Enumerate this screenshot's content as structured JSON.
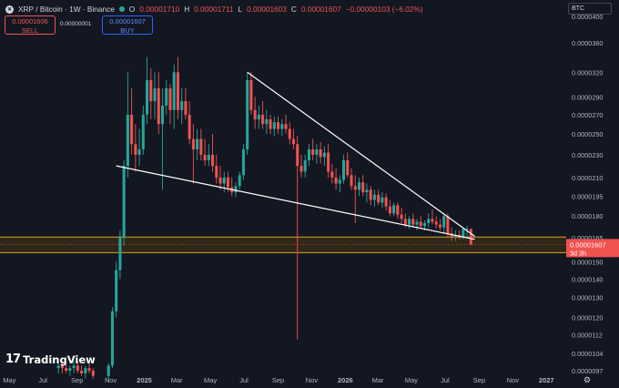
{
  "header": {
    "symbol": "XRP / Bitcoin · 1W · Binance",
    "open_label": "O",
    "open_value": "0.00001710",
    "high_label": "H",
    "high_value": "0.00001711",
    "low_label": "L",
    "low_value": "0.00001603",
    "close_label": "C",
    "close_value": "0.00001607",
    "change": "−0.00000103 (−6.02%)"
  },
  "trade": {
    "sell_price": "0.00001606",
    "sell_label": "SELL",
    "spread": "0.00000001",
    "buy_price": "0.00001607",
    "buy_label": "BUY"
  },
  "toolbar": {
    "currency": "BTC"
  },
  "branding": {
    "logo_mark": "17",
    "logo_text": "TradingView"
  },
  "colors": {
    "background": "#131722",
    "up": "#26a69a",
    "down": "#ef5350",
    "trendline": "#ffffff",
    "zone_border": "#e0a020",
    "zone_fill": "#3a2e14",
    "price_label_bg": "#ef5350"
  },
  "chart_data": {
    "type": "candlestick",
    "ylim": [
      9.7e-06,
      4e-05
    ],
    "log_scale": true,
    "y_ticks": [
      "0.0000400",
      "0.0000360",
      "0.0000320",
      "0.0000290",
      "0.0000270",
      "0.0000250",
      "0.0000230",
      "0.0000210",
      "0.0000195",
      "0.0000180",
      "0.0000165",
      "0.0000150",
      "0.0000140",
      "0.0000130",
      "0.0000120",
      "0.0000112",
      "0.0000104",
      "0.0000097"
    ],
    "y_tick_values": [
      4e-05,
      3.6e-05,
      3.2e-05,
      2.9e-05,
      2.7e-05,
      2.5e-05,
      2.3e-05,
      2.1e-05,
      1.95e-05,
      1.8e-05,
      1.65e-05,
      1.5e-05,
      1.4e-05,
      1.3e-05,
      1.2e-05,
      1.12e-05,
      1.04e-05,
      9.7e-06
    ],
    "x_ticks": [
      "May",
      "Jul",
      "Sep",
      "Nov",
      "2025",
      "Mar",
      "May",
      "Jul",
      "Sep",
      "Nov",
      "2026",
      "Mar",
      "May",
      "Jul",
      "Sep",
      "Nov",
      "2027"
    ],
    "x_tick_dates": [
      "2024-05-01",
      "2024-07-01",
      "2024-09-01",
      "2024-11-01",
      "2025-01-01",
      "2025-03-01",
      "2025-05-01",
      "2025-07-01",
      "2025-09-01",
      "2025-11-01",
      "2026-01-01",
      "2026-03-01",
      "2026-05-01",
      "2026-07-01",
      "2026-09-01",
      "2026-11-01",
      "2027-01-01"
    ],
    "x_range": [
      "2024-04-14",
      "2027-02-06"
    ],
    "last_price": "0.00001607",
    "last_price_value": 1.607e-05,
    "countdown": "3d 3h",
    "support_zone": [
      1.555e-05,
      1.655e-05
    ],
    "trendlines": [
      {
        "name": "upper",
        "from": {
          "date": "2025-07-07",
          "value": 3.2e-05
        },
        "to": {
          "date": "2026-08-24",
          "value": 1.66e-05
        }
      },
      {
        "name": "lower",
        "from": {
          "date": "2024-11-11",
          "value": 2.2e-05
        },
        "to": {
          "date": "2026-08-24",
          "value": 1.64e-05
        }
      }
    ],
    "candles": [
      {
        "date": "2024-07-29",
        "o": 9.8e-06,
        "h": 1e-05,
        "l": 9.6e-06,
        "c": 9.9e-06
      },
      {
        "date": "2024-08-05",
        "o": 9.9e-06,
        "h": 1.01e-05,
        "l": 9.6e-06,
        "c": 9.8e-06
      },
      {
        "date": "2024-08-12",
        "o": 9.8e-06,
        "h": 1e-05,
        "l": 9.6e-06,
        "c": 9.7e-06
      },
      {
        "date": "2024-08-19",
        "o": 9.7e-06,
        "h": 9.9e-06,
        "l": 9.5e-06,
        "c": 9.8e-06
      },
      {
        "date": "2024-08-26",
        "o": 9.8e-06,
        "h": 1.01e-05,
        "l": 9.6e-06,
        "c": 9.9e-06
      },
      {
        "date": "2024-09-02",
        "o": 9.9e-06,
        "h": 1.01e-05,
        "l": 9.6e-06,
        "c": 9.7e-06
      },
      {
        "date": "2024-09-09",
        "o": 9.7e-06,
        "h": 9.9e-06,
        "l": 9.5e-06,
        "c": 9.6e-06
      },
      {
        "date": "2024-09-16",
        "o": 9.6e-06,
        "h": 9.9e-06,
        "l": 9.4e-06,
        "c": 9.8e-06
      },
      {
        "date": "2024-09-23",
        "o": 9.8e-06,
        "h": 1e-05,
        "l": 9.6e-06,
        "c": 9.7e-06
      },
      {
        "date": "2024-09-30",
        "o": 9.7e-06,
        "h": 9.8e-06,
        "l": 9.4e-06,
        "c": 9.5e-06
      },
      {
        "date": "2024-10-28",
        "o": 9.5e-06,
        "h": 1e-05,
        "l": 9.3e-06,
        "c": 9.9e-06
      },
      {
        "date": "2024-11-04",
        "o": 9.9e-06,
        "h": 1.25e-05,
        "l": 9.8e-06,
        "c": 1.23e-05
      },
      {
        "date": "2024-11-11",
        "o": 1.23e-05,
        "h": 1.5e-05,
        "l": 1.2e-05,
        "c": 1.45e-05
      },
      {
        "date": "2024-11-18",
        "o": 1.45e-05,
        "h": 1.7e-05,
        "l": 1.4e-05,
        "c": 1.65e-05
      },
      {
        "date": "2024-11-25",
        "o": 1.65e-05,
        "h": 2.25e-05,
        "l": 1.6e-05,
        "c": 2.2e-05
      },
      {
        "date": "2024-12-02",
        "o": 2.2e-05,
        "h": 3.2e-05,
        "l": 2.1e-05,
        "c": 2.7e-05
      },
      {
        "date": "2024-12-09",
        "o": 2.7e-05,
        "h": 3e-05,
        "l": 2.3e-05,
        "c": 2.4e-05
      },
      {
        "date": "2024-12-16",
        "o": 2.4e-05,
        "h": 2.6e-05,
        "l": 2.15e-05,
        "c": 2.3e-05
      },
      {
        "date": "2024-12-23",
        "o": 2.3e-05,
        "h": 2.55e-05,
        "l": 2.2e-05,
        "c": 2.35e-05
      },
      {
        "date": "2024-12-30",
        "o": 2.35e-05,
        "h": 2.8e-05,
        "l": 2.3e-05,
        "c": 2.7e-05
      },
      {
        "date": "2025-01-06",
        "o": 2.7e-05,
        "h": 3.4e-05,
        "l": 2.6e-05,
        "c": 3.1e-05
      },
      {
        "date": "2025-01-13",
        "o": 3.1e-05,
        "h": 3.25e-05,
        "l": 2.65e-05,
        "c": 2.85e-05
      },
      {
        "date": "2025-01-20",
        "o": 2.85e-05,
        "h": 3.2e-05,
        "l": 2.65e-05,
        "c": 3e-05
      },
      {
        "date": "2025-01-27",
        "o": 3e-05,
        "h": 3.2e-05,
        "l": 2.5e-05,
        "c": 2.6e-05
      },
      {
        "date": "2025-02-03",
        "o": 2.6e-05,
        "h": 3e-05,
        "l": 2e-05,
        "c": 2.8e-05
      },
      {
        "date": "2025-02-10",
        "o": 2.8e-05,
        "h": 3.1e-05,
        "l": 2.7e-05,
        "c": 3e-05
      },
      {
        "date": "2025-02-17",
        "o": 3e-05,
        "h": 3.05e-05,
        "l": 2.6e-05,
        "c": 2.75e-05
      },
      {
        "date": "2025-02-24",
        "o": 2.75e-05,
        "h": 3.3e-05,
        "l": 2.55e-05,
        "c": 3.2e-05
      },
      {
        "date": "2025-03-03",
        "o": 3.2e-05,
        "h": 3.4e-05,
        "l": 2.65e-05,
        "c": 2.75e-05
      },
      {
        "date": "2025-03-10",
        "o": 2.75e-05,
        "h": 3e-05,
        "l": 2.6e-05,
        "c": 2.85e-05
      },
      {
        "date": "2025-03-17",
        "o": 2.85e-05,
        "h": 3e-05,
        "l": 2.65e-05,
        "c": 2.7e-05
      },
      {
        "date": "2025-03-24",
        "o": 2.7e-05,
        "h": 2.85e-05,
        "l": 2.4e-05,
        "c": 2.45e-05
      },
      {
        "date": "2025-03-31",
        "o": 2.45e-05,
        "h": 2.6e-05,
        "l": 2.05e-05,
        "c": 2.35e-05
      },
      {
        "date": "2025-04-07",
        "o": 2.35e-05,
        "h": 2.55e-05,
        "l": 2.25e-05,
        "c": 2.45e-05
      },
      {
        "date": "2025-04-14",
        "o": 2.45e-05,
        "h": 2.55e-05,
        "l": 2.25e-05,
        "c": 2.3e-05
      },
      {
        "date": "2025-04-21",
        "o": 2.3e-05,
        "h": 2.45e-05,
        "l": 2.2e-05,
        "c": 2.25e-05
      },
      {
        "date": "2025-04-28",
        "o": 2.25e-05,
        "h": 2.4e-05,
        "l": 2.2e-05,
        "c": 2.3e-05
      },
      {
        "date": "2025-05-05",
        "o": 2.3e-05,
        "h": 2.5e-05,
        "l": 2.15e-05,
        "c": 2.2e-05
      },
      {
        "date": "2025-05-12",
        "o": 2.2e-05,
        "h": 2.3e-05,
        "l": 2.05e-05,
        "c": 2.1e-05
      },
      {
        "date": "2025-05-19",
        "o": 2.1e-05,
        "h": 2.2e-05,
        "l": 2e-05,
        "c": 2.05e-05
      },
      {
        "date": "2025-05-26",
        "o": 2.05e-05,
        "h": 2.15e-05,
        "l": 1.98e-05,
        "c": 2.1e-05
      },
      {
        "date": "2025-06-02",
        "o": 2.1e-05,
        "h": 2.15e-05,
        "l": 1.98e-05,
        "c": 2.02e-05
      },
      {
        "date": "2025-06-09",
        "o": 2.02e-05,
        "h": 2.1e-05,
        "l": 1.95e-05,
        "c": 1.98e-05
      },
      {
        "date": "2025-06-16",
        "o": 1.98e-05,
        "h": 2.06e-05,
        "l": 1.94e-05,
        "c": 2.03e-05
      },
      {
        "date": "2025-06-23",
        "o": 2.03e-05,
        "h": 2.15e-05,
        "l": 2e-05,
        "c": 2.12e-05
      },
      {
        "date": "2025-06-30",
        "o": 2.12e-05,
        "h": 2.4e-05,
        "l": 2.08e-05,
        "c": 2.35e-05
      },
      {
        "date": "2025-07-07",
        "o": 2.35e-05,
        "h": 3.2e-05,
        "l": 2.3e-05,
        "c": 3.1e-05
      },
      {
        "date": "2025-07-14",
        "o": 3.1e-05,
        "h": 3.2e-05,
        "l": 2.7e-05,
        "c": 2.75e-05
      },
      {
        "date": "2025-07-21",
        "o": 2.75e-05,
        "h": 2.9e-05,
        "l": 2.55e-05,
        "c": 2.65e-05
      },
      {
        "date": "2025-07-28",
        "o": 2.65e-05,
        "h": 2.8e-05,
        "l": 2.55e-05,
        "c": 2.7e-05
      },
      {
        "date": "2025-08-04",
        "o": 2.7e-05,
        "h": 2.85e-05,
        "l": 2.55e-05,
        "c": 2.6e-05
      },
      {
        "date": "2025-08-11",
        "o": 2.6e-05,
        "h": 2.75e-05,
        "l": 2.5e-05,
        "c": 2.65e-05
      },
      {
        "date": "2025-08-18",
        "o": 2.65e-05,
        "h": 2.7e-05,
        "l": 2.5e-05,
        "c": 2.55e-05
      },
      {
        "date": "2025-08-25",
        "o": 2.55e-05,
        "h": 2.68e-05,
        "l": 2.48e-05,
        "c": 2.62e-05
      },
      {
        "date": "2025-09-01",
        "o": 2.62e-05,
        "h": 2.68e-05,
        "l": 2.5e-05,
        "c": 2.55e-05
      },
      {
        "date": "2025-09-08",
        "o": 2.55e-05,
        "h": 2.65e-05,
        "l": 2.48e-05,
        "c": 2.6e-05
      },
      {
        "date": "2025-09-15",
        "o": 2.6e-05,
        "h": 2.7e-05,
        "l": 2.5e-05,
        "c": 2.55e-05
      },
      {
        "date": "2025-09-22",
        "o": 2.55e-05,
        "h": 2.62e-05,
        "l": 2.4e-05,
        "c": 2.45e-05
      },
      {
        "date": "2025-09-29",
        "o": 2.45e-05,
        "h": 2.55e-05,
        "l": 2.35e-05,
        "c": 2.4e-05
      },
      {
        "date": "2025-10-06",
        "o": 2.4e-05,
        "h": 2.48e-05,
        "l": 1.1e-05,
        "c": 2.2e-05
      },
      {
        "date": "2025-10-13",
        "o": 2.2e-05,
        "h": 2.3e-05,
        "l": 2.1e-05,
        "c": 2.15e-05
      },
      {
        "date": "2025-10-20",
        "o": 2.15e-05,
        "h": 2.3e-05,
        "l": 2.1e-05,
        "c": 2.25e-05
      },
      {
        "date": "2025-10-27",
        "o": 2.25e-05,
        "h": 2.4e-05,
        "l": 2.2e-05,
        "c": 2.35e-05
      },
      {
        "date": "2025-11-03",
        "o": 2.35e-05,
        "h": 2.45e-05,
        "l": 2.25e-05,
        "c": 2.3e-05
      },
      {
        "date": "2025-11-10",
        "o": 2.3e-05,
        "h": 2.4e-05,
        "l": 2.22e-05,
        "c": 2.35e-05
      },
      {
        "date": "2025-11-17",
        "o": 2.35e-05,
        "h": 2.42e-05,
        "l": 2.22e-05,
        "c": 2.28e-05
      },
      {
        "date": "2025-11-24",
        "o": 2.28e-05,
        "h": 2.38e-05,
        "l": 2.2e-05,
        "c": 2.32e-05
      },
      {
        "date": "2025-12-01",
        "o": 2.32e-05,
        "h": 2.4e-05,
        "l": 2.1e-05,
        "c": 2.15e-05
      },
      {
        "date": "2025-12-08",
        "o": 2.15e-05,
        "h": 2.22e-05,
        "l": 2.05e-05,
        "c": 2.1e-05
      },
      {
        "date": "2025-12-15",
        "o": 2.1e-05,
        "h": 2.18e-05,
        "l": 2e-05,
        "c": 2.05e-05
      },
      {
        "date": "2025-12-22",
        "o": 2.05e-05,
        "h": 2.12e-05,
        "l": 1.98e-05,
        "c": 2.08e-05
      },
      {
        "date": "2025-12-29",
        "o": 2.08e-05,
        "h": 2.3e-05,
        "l": 2.05e-05,
        "c": 2.25e-05
      },
      {
        "date": "2026-01-05",
        "o": 2.25e-05,
        "h": 2.32e-05,
        "l": 2.1e-05,
        "c": 2.12e-05
      },
      {
        "date": "2026-01-12",
        "o": 2.12e-05,
        "h": 2.18e-05,
        "l": 2e-05,
        "c": 2.03e-05
      },
      {
        "date": "2026-01-19",
        "o": 2.03e-05,
        "h": 2.12e-05,
        "l": 1.75e-05,
        "c": 2e-05
      },
      {
        "date": "2026-01-26",
        "o": 2e-05,
        "h": 2.1e-05,
        "l": 1.95e-05,
        "c": 2.06e-05
      },
      {
        "date": "2026-02-02",
        "o": 2.06e-05,
        "h": 2.12e-05,
        "l": 1.95e-05,
        "c": 1.98e-05
      },
      {
        "date": "2026-02-09",
        "o": 1.98e-05,
        "h": 2.05e-05,
        "l": 1.9e-05,
        "c": 2e-05
      },
      {
        "date": "2026-02-16",
        "o": 2e-05,
        "h": 2.03e-05,
        "l": 1.88e-05,
        "c": 1.92e-05
      },
      {
        "date": "2026-02-23",
        "o": 1.92e-05,
        "h": 2e-05,
        "l": 1.87e-05,
        "c": 1.96e-05
      },
      {
        "date": "2026-03-02",
        "o": 1.96e-05,
        "h": 2e-05,
        "l": 1.88e-05,
        "c": 1.9e-05
      },
      {
        "date": "2026-03-09",
        "o": 1.9e-05,
        "h": 1.98e-05,
        "l": 1.86e-05,
        "c": 1.94e-05
      },
      {
        "date": "2026-03-16",
        "o": 1.94e-05,
        "h": 1.97e-05,
        "l": 1.84e-05,
        "c": 1.87e-05
      },
      {
        "date": "2026-03-23",
        "o": 1.87e-05,
        "h": 1.92e-05,
        "l": 1.8e-05,
        "c": 1.82e-05
      },
      {
        "date": "2026-03-30",
        "o": 1.82e-05,
        "h": 1.9e-05,
        "l": 1.8e-05,
        "c": 1.88e-05
      },
      {
        "date": "2026-04-06",
        "o": 1.88e-05,
        "h": 1.9e-05,
        "l": 1.78e-05,
        "c": 1.81e-05
      },
      {
        "date": "2026-04-13",
        "o": 1.81e-05,
        "h": 1.86e-05,
        "l": 1.75e-05,
        "c": 1.78e-05
      },
      {
        "date": "2026-04-20",
        "o": 1.78e-05,
        "h": 1.82e-05,
        "l": 1.72e-05,
        "c": 1.74e-05
      },
      {
        "date": "2026-04-27",
        "o": 1.74e-05,
        "h": 1.8e-05,
        "l": 1.71e-05,
        "c": 1.78e-05
      },
      {
        "date": "2026-05-04",
        "o": 1.78e-05,
        "h": 1.82e-05,
        "l": 1.72e-05,
        "c": 1.74e-05
      },
      {
        "date": "2026-05-11",
        "o": 1.74e-05,
        "h": 1.78e-05,
        "l": 1.7e-05,
        "c": 1.76e-05
      },
      {
        "date": "2026-05-18",
        "o": 1.76e-05,
        "h": 1.8e-05,
        "l": 1.72e-05,
        "c": 1.73e-05
      },
      {
        "date": "2026-05-25",
        "o": 1.73e-05,
        "h": 1.77e-05,
        "l": 1.7e-05,
        "c": 1.75e-05
      },
      {
        "date": "2026-06-01",
        "o": 1.75e-05,
        "h": 1.82e-05,
        "l": 1.72e-05,
        "c": 1.78e-05
      },
      {
        "date": "2026-06-08",
        "o": 1.78e-05,
        "h": 1.85e-05,
        "l": 1.74e-05,
        "c": 1.76e-05
      },
      {
        "date": "2026-06-15",
        "o": 1.76e-05,
        "h": 1.8e-05,
        "l": 1.71e-05,
        "c": 1.74e-05
      },
      {
        "date": "2026-06-22",
        "o": 1.74e-05,
        "h": 1.78e-05,
        "l": 1.7e-05,
        "c": 1.72e-05
      },
      {
        "date": "2026-06-29",
        "o": 1.72e-05,
        "h": 1.82e-05,
        "l": 1.68e-05,
        "c": 1.8e-05
      },
      {
        "date": "2026-07-06",
        "o": 1.8e-05,
        "h": 1.82e-05,
        "l": 1.65e-05,
        "c": 1.68e-05
      },
      {
        "date": "2026-07-13",
        "o": 1.68e-05,
        "h": 1.72e-05,
        "l": 1.63e-05,
        "c": 1.66e-05
      },
      {
        "date": "2026-07-20",
        "o": 1.66e-05,
        "h": 1.7e-05,
        "l": 1.63e-05,
        "c": 1.67e-05
      },
      {
        "date": "2026-07-27",
        "o": 1.67e-05,
        "h": 1.7e-05,
        "l": 1.64e-05,
        "c": 1.65e-05
      },
      {
        "date": "2026-08-03",
        "o": 1.65e-05,
        "h": 1.72e-05,
        "l": 1.64e-05,
        "c": 1.71e-05
      },
      {
        "date": "2026-08-10",
        "o": 1.71e-05,
        "h": 1.73e-05,
        "l": 1.65e-05,
        "c": 1.71e-05
      },
      {
        "date": "2026-08-17",
        "o": 1.71e-05,
        "h": 1.711e-05,
        "l": 1.603e-05,
        "c": 1.607e-05
      }
    ]
  }
}
